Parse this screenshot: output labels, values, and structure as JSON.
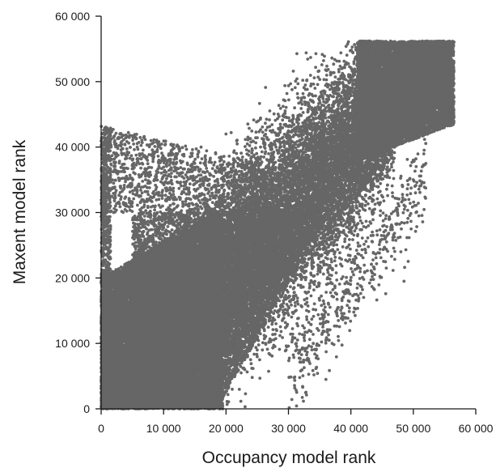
{
  "chart_data": {
    "type": "scatter",
    "title": "",
    "xlabel": "Occupancy model rank",
    "ylabel": "Maxent model rank",
    "xlim": [
      0,
      60000
    ],
    "ylim": [
      0,
      60000
    ],
    "x_ticks": [
      0,
      10000,
      20000,
      30000,
      40000,
      50000,
      60000
    ],
    "y_ticks": [
      0,
      10000,
      20000,
      30000,
      40000,
      50000,
      60000
    ],
    "x_tick_labels": [
      "0",
      "10 000",
      "20 000",
      "30 000",
      "40 000",
      "50 000",
      "60 000"
    ],
    "y_tick_labels": [
      "0",
      "10 000",
      "20 000",
      "30 000",
      "40 000",
      "50 000",
      "60 000"
    ],
    "grid": false,
    "legend": "none",
    "point_color": "#666666",
    "n_points_approx": 56000,
    "x": [
      500,
      2000,
      4000,
      6000,
      8000,
      10000,
      12000,
      14000,
      16000,
      18000,
      19000,
      21000,
      23000,
      25000,
      28000,
      30000,
      33000,
      35000,
      38000,
      40000,
      43000,
      45000,
      47000,
      49000,
      51000,
      53000,
      55000,
      56500,
      1000,
      3000,
      5000,
      8000,
      12000,
      16000,
      20000,
      2000,
      6000,
      10000,
      14000,
      18000,
      24000,
      28000,
      32000,
      36000,
      36000,
      38000,
      45000,
      47000,
      48000,
      50000,
      48500,
      52000,
      35500,
      37000,
      19000
    ],
    "y": [
      2000,
      5000,
      8000,
      10000,
      13000,
      15000,
      17000,
      19000,
      21000,
      23000,
      0,
      3000,
      6000,
      9000,
      13000,
      17000,
      22000,
      25000,
      29000,
      32000,
      37000,
      41000,
      45000,
      48000,
      50000,
      52000,
      54000,
      56000,
      40000,
      42000,
      38000,
      41000,
      39000,
      40000,
      42000,
      30000,
      28000,
      29000,
      30000,
      34000,
      37000,
      40000,
      43000,
      46000,
      4500,
      13500,
      37000,
      40000,
      24000,
      38000,
      19500,
      37500,
      14000,
      10000,
      800
    ]
  }
}
